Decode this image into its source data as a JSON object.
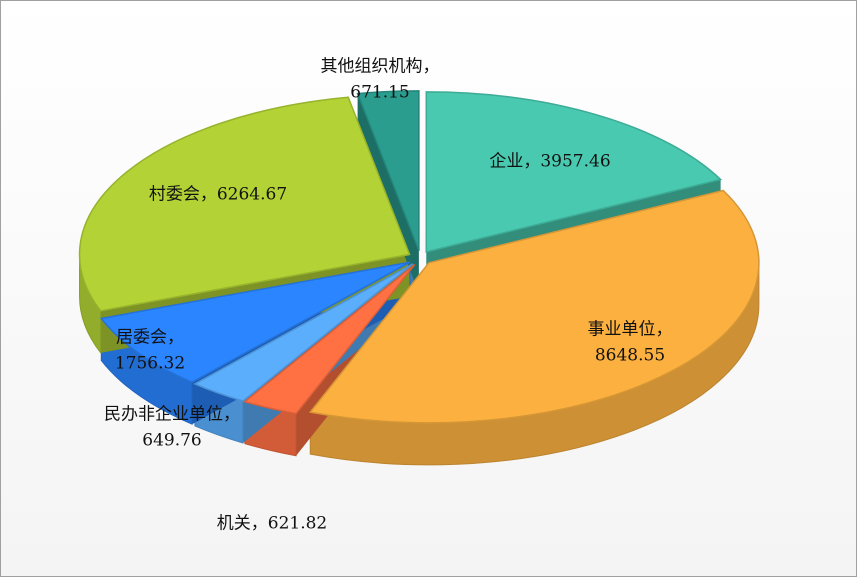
{
  "chart_data": {
    "type": "pie3d",
    "categories": [
      "企业",
      "事业单位",
      "机关",
      "民办非企业单位",
      "居委会",
      "村委会",
      "其他组织机构"
    ],
    "values": [
      3957.46,
      8648.55,
      621.82,
      649.76,
      1756.32,
      6264.67,
      671.15
    ],
    "value_labels": [
      [
        "企业，3957.46"
      ],
      [
        "事业单位，",
        "8648.55"
      ],
      [
        "机关，621.82"
      ],
      [
        "民办非企业单位，",
        "649.76"
      ],
      [
        "居委会，",
        "1756.32"
      ],
      [
        "村委会，6264.67"
      ],
      [
        "其他组织机构，",
        "671.15"
      ]
    ],
    "colors": [
      "#48c9b0",
      "#fbb040",
      "#ff7043",
      "#5aaefc",
      "#2a85ff",
      "#b2d235",
      "#2a9d8f"
    ]
  }
}
